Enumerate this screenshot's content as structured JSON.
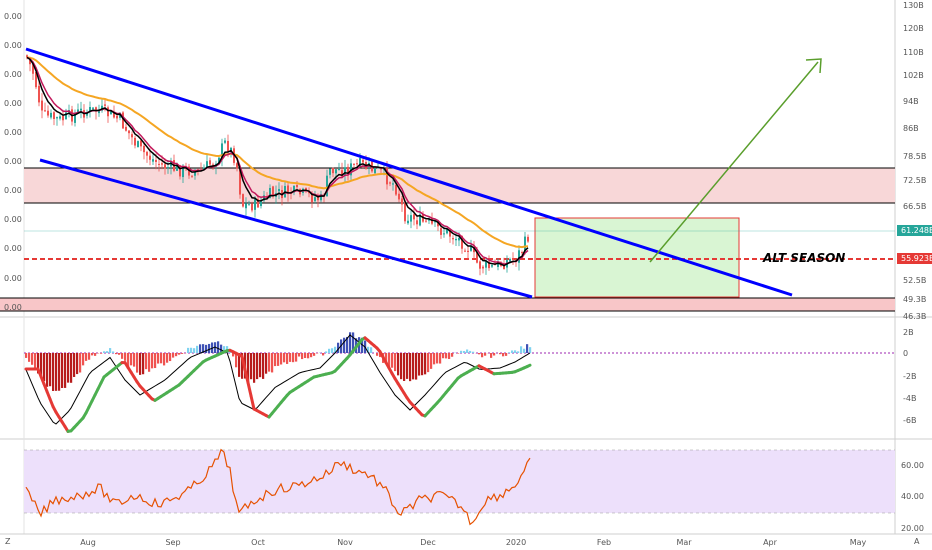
{
  "chart_data": [
    {
      "type": "candlestick",
      "panel": "price",
      "y_ticks_right": [
        "130B",
        "120B",
        "110B",
        "102B",
        "94B",
        "86B",
        "78.5B",
        "72.5B",
        "66.5B",
        "61.248B",
        "55.923B",
        "52.5B",
        "49.3B",
        "46.3B"
      ],
      "y_ticks_left": [
        "0.00",
        "0.00",
        "0.00",
        "0.00",
        "0.00",
        "0.00",
        "0.00",
        "0.00",
        "0.00",
        "0.00",
        "0.00",
        "0.00"
      ],
      "price_badges": [
        {
          "label": "61.248B",
          "color": "#26a69a"
        },
        {
          "label": "55.923B",
          "color": "#e53935"
        }
      ],
      "x_tick_labels": [
        "Aug",
        "Sep",
        "Oct",
        "Nov",
        "Dec",
        "2020",
        "Feb",
        "Mar",
        "Apr",
        "May"
      ],
      "annotation": "ALT SEASON",
      "colors": {
        "channel": "#0000ff",
        "ema_long": "#f5a623",
        "ema_short": "#000000",
        "ema_mid": "#c2185b",
        "arrow": "#5a9e2c",
        "resistance_zone": "#f8d7d8",
        "target_box": "#d9f5d3",
        "target_box_border": "#e53935",
        "bull": "#26a69a",
        "bear": "#ef5350",
        "support_line": "#e53935"
      }
    },
    {
      "type": "histogram",
      "panel": "momentum",
      "y_ticks": [
        "2B",
        "0",
        "-2B",
        "-4B",
        "-6B"
      ],
      "colors": {
        "positive": "#7fd3f0",
        "positive_dark": "#3f51b5",
        "negative": "#ef5350",
        "negative_dark": "#b71c1c",
        "fast": "#000000",
        "signal_up": "#4caf50",
        "signal_down": "#e53935"
      }
    },
    {
      "type": "line",
      "panel": "rsi",
      "y_ticks": [
        "60.00",
        "40.00",
        "20.00"
      ],
      "band": [
        30,
        70
      ],
      "colors": {
        "line": "#e65100",
        "band": "#ede0fb"
      }
    }
  ],
  "footer": {
    "left_badge": "Z",
    "right_badge": "A"
  }
}
